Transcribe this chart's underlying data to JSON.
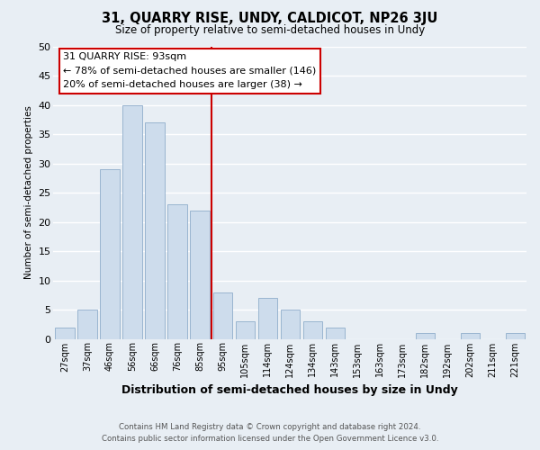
{
  "title": "31, QUARRY RISE, UNDY, CALDICOT, NP26 3JU",
  "subtitle": "Size of property relative to semi-detached houses in Undy",
  "xlabel": "Distribution of semi-detached houses by size in Undy",
  "ylabel": "Number of semi-detached properties",
  "footer_line1": "Contains HM Land Registry data © Crown copyright and database right 2024.",
  "footer_line2": "Contains public sector information licensed under the Open Government Licence v3.0.",
  "categories": [
    "27sqm",
    "37sqm",
    "46sqm",
    "56sqm",
    "66sqm",
    "76sqm",
    "85sqm",
    "95sqm",
    "105sqm",
    "114sqm",
    "124sqm",
    "134sqm",
    "143sqm",
    "153sqm",
    "163sqm",
    "173sqm",
    "182sqm",
    "192sqm",
    "202sqm",
    "211sqm",
    "221sqm"
  ],
  "values": [
    2,
    5,
    29,
    40,
    37,
    23,
    22,
    8,
    3,
    7,
    5,
    3,
    2,
    0,
    0,
    0,
    1,
    0,
    1,
    0,
    1
  ],
  "bar_color": "#cddcec",
  "bar_edge_color": "#9ab5d0",
  "highlight_line_color": "#cc0000",
  "annotation_title": "31 QUARRY RISE: 93sqm",
  "annotation_line1": "← 78% of semi-detached houses are smaller (146)",
  "annotation_line2": "20% of semi-detached houses are larger (38) →",
  "annotation_box_facecolor": "#ffffff",
  "annotation_box_edgecolor": "#cc0000",
  "ylim": [
    0,
    50
  ],
  "yticks": [
    0,
    5,
    10,
    15,
    20,
    25,
    30,
    35,
    40,
    45,
    50
  ],
  "fig_bg_color": "#e8eef4",
  "plot_bg_color": "#e8eef4",
  "grid_color": "#ffffff",
  "highlight_bar_index": 7
}
